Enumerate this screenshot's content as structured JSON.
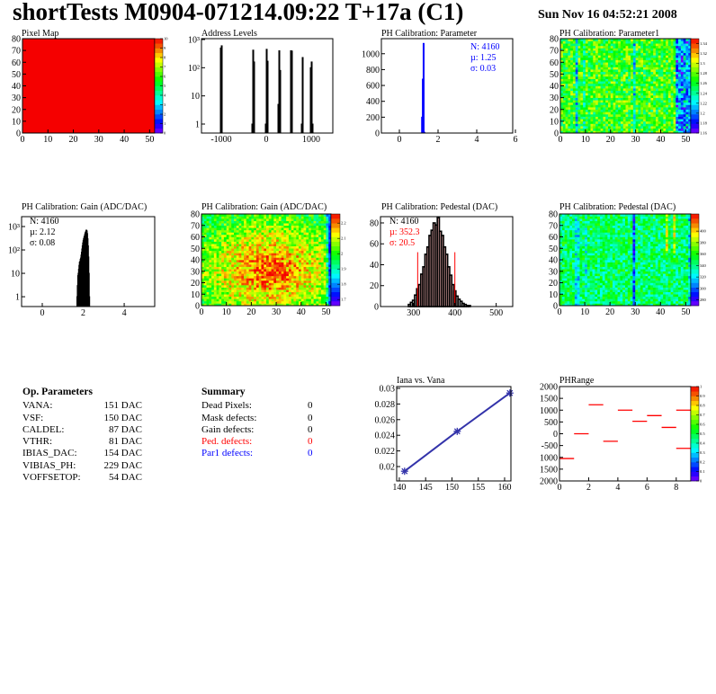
{
  "header": {
    "title": "shortTests M0904-071214.09:22 T+17a (C1)",
    "timestamp": "Sun Nov 16 04:52:21 2008"
  },
  "op_parameters": {
    "title": "Op. Parameters",
    "rows": [
      {
        "name": "VANA:",
        "value": "151 DAC"
      },
      {
        "name": "VSF:",
        "value": "150 DAC"
      },
      {
        "name": "CALDEL:",
        "value": "87 DAC"
      },
      {
        "name": "VTHR:",
        "value": "81 DAC"
      },
      {
        "name": "IBIAS_DAC:",
        "value": "154 DAC"
      },
      {
        "name": "VIBIAS_PH:",
        "value": "229 DAC"
      },
      {
        "name": "VOFFSETOP:",
        "value": "54 DAC"
      }
    ]
  },
  "summary": {
    "title": "Summary",
    "rows": [
      {
        "label": "Dead Pixels:",
        "value": "0",
        "color": "#000000"
      },
      {
        "label": "Mask defects:",
        "value": "0",
        "color": "#000000"
      },
      {
        "label": "Gain defects:",
        "value": "0",
        "color": "#000000"
      },
      {
        "label": "Ped. defects:",
        "value": "0",
        "color": "#ff0000"
      },
      {
        "label": "Par1 defects:",
        "value": "0",
        "color": "#0000ff"
      }
    ]
  },
  "chart_data": [
    {
      "type": "heatmap",
      "title": "Pixel Map",
      "xlim": [
        0,
        52
      ],
      "ylim": [
        0,
        80
      ],
      "xticks": [
        0,
        10,
        20,
        30,
        40,
        50
      ],
      "xtick_labels": [
        "0",
        "10",
        "20",
        "30",
        "40",
        "50"
      ],
      "yticks": [
        0,
        10,
        20,
        30,
        40,
        50,
        60,
        70,
        80
      ],
      "ytick_labels": [
        "0",
        "10",
        "20",
        "30",
        "40",
        "50",
        "60",
        "70",
        "80"
      ],
      "z_range": [
        0,
        10
      ],
      "z_ticks": [
        0,
        1,
        2,
        3,
        4,
        5,
        6,
        7,
        8,
        9,
        10
      ],
      "z_tick_labels": [
        "0",
        "1",
        "2",
        "3",
        "4",
        "5",
        "6",
        "7",
        "8",
        "9",
        "10"
      ],
      "uniform_value": 10
    },
    {
      "type": "bar",
      "title": "Address Levels",
      "log_y": true,
      "xlim": [
        -1440,
        1480
      ],
      "ylim": [
        0.48,
        1075
      ],
      "xticks": [
        -1000,
        0,
        1000
      ],
      "xtick_labels": [
        "-1000",
        "0",
        "1000"
      ],
      "yticks": [
        1,
        10,
        100,
        1000
      ],
      "ytick_labels": [
        "1",
        "10",
        "10²",
        "10³"
      ],
      "bin_width": 20,
      "color": "#000000",
      "bins": [
        [
          -1010,
          500
        ],
        [
          -990,
          600
        ],
        [
          -310,
          1
        ],
        [
          -290,
          420
        ],
        [
          -270,
          160
        ],
        [
          -10,
          1
        ],
        [
          10,
          450
        ],
        [
          30,
          170
        ],
        [
          270,
          5
        ],
        [
          290,
          400
        ],
        [
          310,
          80
        ],
        [
          550,
          400
        ],
        [
          570,
          390
        ],
        [
          790,
          1
        ],
        [
          810,
          230
        ],
        [
          990,
          100
        ],
        [
          1010,
          160
        ],
        [
          1030,
          1
        ]
      ]
    },
    {
      "type": "bar",
      "title": "PH Calibration: Parameter",
      "xlim": [
        -0.93,
        5.86
      ],
      "ylim": [
        0,
        1190
      ],
      "xticks": [
        0,
        2,
        4,
        6
      ],
      "xtick_labels": [
        "0",
        "2",
        "4",
        "6"
      ],
      "yticks": [
        0,
        200,
        400,
        600,
        800,
        1000
      ],
      "ytick_labels": [
        "0",
        "200",
        "400",
        "600",
        "800",
        "1000"
      ],
      "bin_width": 0.04,
      "color": "#0000ff",
      "bins": [
        [
          1.17,
          200
        ],
        [
          1.21,
          680
        ],
        [
          1.25,
          1130
        ],
        [
          1.29,
          10
        ]
      ],
      "stats": [
        {
          "text": "N: 4160",
          "color": "#0000ff"
        },
        {
          "text": "µ: 1.25",
          "color": "#0000ff"
        },
        {
          "text": "σ: 0.03",
          "color": "#0000ff"
        }
      ]
    },
    {
      "type": "heatmap",
      "title": "PH Calibration: Parameter1",
      "xlim": [
        0,
        52
      ],
      "ylim": [
        0,
        80
      ],
      "xticks": [
        0,
        10,
        20,
        30,
        40,
        50
      ],
      "xtick_labels": [
        "0",
        "10",
        "20",
        "30",
        "40",
        "50"
      ],
      "yticks": [
        0,
        10,
        20,
        30,
        40,
        50,
        60,
        70,
        80
      ],
      "ytick_labels": [
        "0",
        "10",
        "20",
        "30",
        "40",
        "50",
        "60",
        "70",
        "80"
      ],
      "z_range": [
        1.16,
        1.35
      ],
      "z_ticks": [
        1.16,
        1.18,
        1.2,
        1.22,
        1.24,
        1.26,
        1.28,
        1.3,
        1.32,
        1.34
      ],
      "z_tick_labels": [
        "1.16",
        "1.18",
        "1.2",
        "1.22",
        "1.24",
        "1.26",
        "1.28",
        "1.3",
        "1.32",
        "1.34"
      ]
    },
    {
      "type": "bar",
      "title": "PH Calibration: Gain (ADC/DAC)",
      "log_y": true,
      "xlim": [
        -1.01,
        5.49
      ],
      "ylim": [
        0.38,
        2650
      ],
      "xticks": [
        0,
        2,
        4
      ],
      "xtick_labels": [
        "0",
        "2",
        "4"
      ],
      "yticks": [
        1,
        10,
        100,
        1000
      ],
      "ytick_labels": [
        "1",
        "10",
        "10²",
        "10³"
      ],
      "bin_width": 0.02,
      "color": "#000000",
      "bins": [
        [
          1.7,
          1
        ],
        [
          1.72,
          3
        ],
        [
          1.74,
          8
        ],
        [
          1.76,
          10
        ],
        [
          1.78,
          15
        ],
        [
          1.8,
          22
        ],
        [
          1.82,
          30
        ],
        [
          1.84,
          32
        ],
        [
          1.86,
          40
        ],
        [
          1.88,
          45
        ],
        [
          1.9,
          60
        ],
        [
          1.92,
          80
        ],
        [
          1.94,
          110
        ],
        [
          1.96,
          150
        ],
        [
          1.98,
          200
        ],
        [
          2.0,
          250
        ],
        [
          2.02,
          300
        ],
        [
          2.04,
          350
        ],
        [
          2.06,
          400
        ],
        [
          2.08,
          480
        ],
        [
          2.1,
          550
        ],
        [
          2.12,
          600
        ],
        [
          2.14,
          700
        ],
        [
          2.16,
          650
        ],
        [
          2.18,
          500
        ],
        [
          2.2,
          300
        ],
        [
          2.22,
          150
        ],
        [
          2.24,
          50
        ],
        [
          2.26,
          10
        ],
        [
          2.28,
          1
        ]
      ],
      "stats": [
        {
          "text": "N: 4160",
          "color": "#000000"
        },
        {
          "text": "µ: 2.12",
          "color": "#000000"
        },
        {
          "text": "σ: 0.08",
          "color": "#000000"
        }
      ]
    },
    {
      "type": "heatmap",
      "title": "PH Calibration: Gain (ADC/DAC)",
      "xlim": [
        0,
        52
      ],
      "ylim": [
        0,
        80
      ],
      "xticks": [
        0,
        10,
        20,
        30,
        40,
        50
      ],
      "xtick_labels": [
        "0",
        "10",
        "20",
        "30",
        "40",
        "50"
      ],
      "yticks": [
        0,
        10,
        20,
        30,
        40,
        50,
        60,
        70,
        80
      ],
      "ytick_labels": [
        "0",
        "10",
        "20",
        "30",
        "40",
        "50",
        "60",
        "70",
        "80"
      ],
      "z_range": [
        1.66,
        2.26
      ],
      "z_ticks": [
        1.7,
        1.8,
        1.9,
        2,
        2.1,
        2.2
      ],
      "z_tick_labels": [
        "1.7",
        "1.8",
        "1.9",
        "2",
        "2.1",
        "2.2"
      ]
    },
    {
      "type": "bar",
      "title": "PH Calibration: Pedestal (DAC)",
      "xlim": [
        220,
        540
      ],
      "ylim": [
        0,
        86
      ],
      "xticks": [
        300,
        400,
        500
      ],
      "xtick_labels": [
        "300",
        "400",
        "500"
      ],
      "yticks": [
        0,
        20,
        40,
        60,
        80
      ],
      "ytick_labels": [
        "0",
        "20",
        "40",
        "60",
        "80"
      ],
      "bin_width": 5,
      "color": "#000000",
      "cut_range": [
        310,
        400
      ],
      "cut_color": "#ff0000",
      "cut_height": 52,
      "bins": [
        [
          290,
          2
        ],
        [
          295,
          4
        ],
        [
          300,
          6
        ],
        [
          305,
          11
        ],
        [
          310,
          17
        ],
        [
          315,
          21
        ],
        [
          320,
          31
        ],
        [
          325,
          38
        ],
        [
          330,
          50
        ],
        [
          335,
          57
        ],
        [
          340,
          68
        ],
        [
          345,
          73
        ],
        [
          350,
          80
        ],
        [
          355,
          78
        ],
        [
          360,
          85
        ],
        [
          365,
          72
        ],
        [
          370,
          68
        ],
        [
          375,
          57
        ],
        [
          380,
          50
        ],
        [
          385,
          38
        ],
        [
          390,
          30
        ],
        [
          395,
          21
        ],
        [
          400,
          15
        ],
        [
          405,
          10
        ],
        [
          410,
          7
        ],
        [
          415,
          5
        ],
        [
          420,
          3
        ],
        [
          425,
          2
        ],
        [
          430,
          1
        ],
        [
          435,
          1
        ]
      ],
      "stats": [
        {
          "text": "N: 4160",
          "color": "#000000"
        },
        {
          "text": "µ: 352.3",
          "color": "#ff0000"
        },
        {
          "text": "σ: 20.5",
          "color": "#ff0000"
        }
      ]
    },
    {
      "type": "heatmap",
      "title": "PH Calibration: Pedestal (DAC)",
      "xlim": [
        0,
        52
      ],
      "ylim": [
        0,
        80
      ],
      "xticks": [
        0,
        10,
        20,
        30,
        40,
        50
      ],
      "xtick_labels": [
        "0",
        "10",
        "20",
        "30",
        "40",
        "50"
      ],
      "yticks": [
        0,
        10,
        20,
        30,
        40,
        50,
        60,
        70,
        80
      ],
      "ytick_labels": [
        "0",
        "10",
        "20",
        "30",
        "40",
        "50",
        "60",
        "70",
        "80"
      ],
      "z_range": [
        270,
        430
      ],
      "z_ticks": [
        280,
        300,
        320,
        340,
        360,
        380,
        400
      ],
      "z_tick_labels": [
        "280",
        "300",
        "320",
        "340",
        "360",
        "380",
        "400"
      ]
    },
    {
      "type": "line",
      "title": "Iana vs. Vana",
      "xlim": [
        139.5,
        161.2
      ],
      "ylim": [
        0.01816,
        0.03023
      ],
      "xticks": [
        140,
        145,
        150,
        155,
        160
      ],
      "xtick_labels": [
        "140",
        "145",
        "150",
        "155",
        "160"
      ],
      "yticks": [
        0.02,
        0.022,
        0.024,
        0.026,
        0.028,
        0.03
      ],
      "ytick_labels": [
        "0.02",
        "0.022",
        "0.024",
        "0.026",
        "0.028",
        "0.03"
      ],
      "color": "#3333aa",
      "points": [
        [
          141,
          0.0194
        ],
        [
          151,
          0.0245
        ],
        [
          161,
          0.0294
        ]
      ]
    },
    {
      "type": "heatmap",
      "title": "PHRange",
      "xlim": [
        0,
        9
      ],
      "ylim": [
        -2000,
        2000
      ],
      "xticks": [
        0,
        2,
        4,
        6,
        8
      ],
      "xtick_labels": [
        "0",
        "2",
        "4",
        "6",
        "8"
      ],
      "yticks": [
        2000,
        1500,
        1000,
        500,
        0,
        -500,
        -1000,
        -1500,
        -2000
      ],
      "ytick_labels": [
        "2000",
        "1500",
        "1000",
        "500",
        "0",
        "-500",
        "-1000",
        "-1500",
        "-2000"
      ],
      "z_range": [
        0,
        1
      ],
      "z_ticks": [
        0,
        0.1,
        0.2,
        0.3,
        0.4,
        0.5,
        0.6,
        0.7,
        0.8,
        0.9,
        1
      ],
      "z_tick_labels": [
        "0",
        "0.1",
        "0.2",
        "0.3",
        "0.4",
        "0.5",
        "0.6",
        "0.7",
        "0.8",
        "0.9",
        "1"
      ],
      "segment_color": "#ff0000",
      "segments": [
        [
          0,
          1,
          -1050
        ],
        [
          1,
          2,
          0
        ],
        [
          2,
          3,
          1230
        ],
        [
          3,
          4,
          -320
        ],
        [
          4,
          5,
          1000
        ],
        [
          5,
          6,
          530
        ],
        [
          6,
          7,
          770
        ],
        [
          7,
          8,
          270
        ],
        [
          8,
          9,
          1000
        ],
        [
          8,
          9,
          -620
        ]
      ]
    }
  ]
}
